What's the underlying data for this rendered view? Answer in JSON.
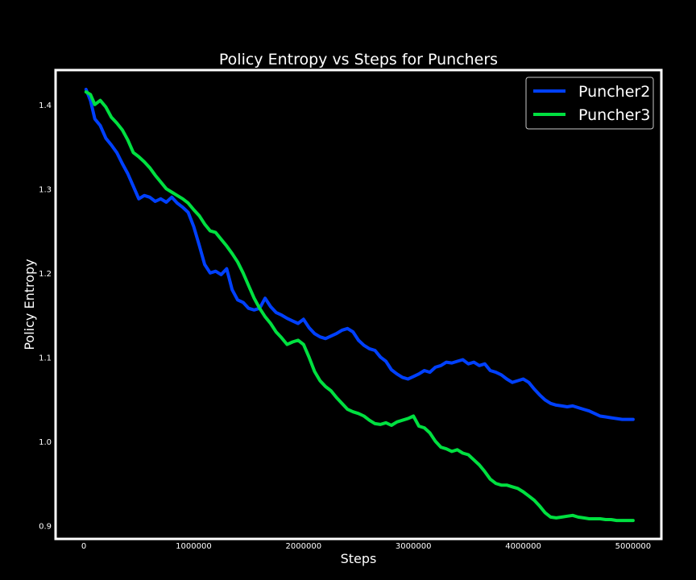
{
  "chart_data": {
    "type": "line",
    "title": "Policy Entropy vs Steps for Punchers",
    "xlabel": "Steps",
    "ylabel": "Policy Entropy",
    "xlim": [
      -250000,
      5250000
    ],
    "ylim": [
      0.885,
      1.44
    ],
    "xticks": [
      0,
      1000000,
      2000000,
      3000000,
      4000000,
      5000000
    ],
    "xtick_labels": [
      "0",
      "1000000",
      "2000000",
      "3000000",
      "4000000",
      "5000000"
    ],
    "yticks": [
      0.9,
      1.0,
      1.1,
      1.2,
      1.3,
      1.4
    ],
    "ytick_labels": [
      "0.9",
      "1.0",
      "1.1",
      "1.2",
      "1.3",
      "1.4"
    ],
    "grid": false,
    "legend": "top-right",
    "series": [
      {
        "name": "Puncher2",
        "color": "#0040ff",
        "x": [
          20000,
          60000,
          100000,
          150000,
          200000,
          250000,
          300000,
          350000,
          400000,
          450000,
          500000,
          550000,
          600000,
          650000,
          700000,
          750000,
          800000,
          850000,
          900000,
          950000,
          1000000,
          1050000,
          1100000,
          1150000,
          1200000,
          1250000,
          1300000,
          1350000,
          1400000,
          1450000,
          1500000,
          1550000,
          1600000,
          1650000,
          1700000,
          1750000,
          1800000,
          1850000,
          1900000,
          1950000,
          2000000,
          2050000,
          2100000,
          2150000,
          2200000,
          2250000,
          2300000,
          2350000,
          2400000,
          2450000,
          2500000,
          2550000,
          2600000,
          2650000,
          2700000,
          2750000,
          2800000,
          2850000,
          2900000,
          2950000,
          3000000,
          3050000,
          3100000,
          3150000,
          3200000,
          3250000,
          3300000,
          3350000,
          3400000,
          3450000,
          3500000,
          3550000,
          3600000,
          3650000,
          3700000,
          3750000,
          3800000,
          3850000,
          3900000,
          3950000,
          4000000,
          4050000,
          4100000,
          4150000,
          4200000,
          4250000,
          4300000,
          4350000,
          4400000,
          4450000,
          4500000,
          4550000,
          4600000,
          4650000,
          4700000,
          4750000,
          4800000,
          4850000,
          4900000,
          4950000,
          5000000
        ],
        "values": [
          1.418,
          1.405,
          1.383,
          1.375,
          1.36,
          1.352,
          1.343,
          1.33,
          1.318,
          1.303,
          1.288,
          1.292,
          1.29,
          1.285,
          1.288,
          1.284,
          1.29,
          1.283,
          1.278,
          1.272,
          1.255,
          1.233,
          1.21,
          1.2,
          1.202,
          1.198,
          1.205,
          1.18,
          1.168,
          1.165,
          1.158,
          1.156,
          1.158,
          1.17,
          1.16,
          1.153,
          1.15,
          1.146,
          1.143,
          1.14,
          1.145,
          1.135,
          1.128,
          1.124,
          1.122,
          1.125,
          1.128,
          1.132,
          1.134,
          1.13,
          1.12,
          1.114,
          1.11,
          1.108,
          1.1,
          1.095,
          1.085,
          1.08,
          1.076,
          1.074,
          1.077,
          1.08,
          1.084,
          1.082,
          1.088,
          1.09,
          1.094,
          1.093,
          1.095,
          1.097,
          1.092,
          1.094,
          1.09,
          1.092,
          1.084,
          1.082,
          1.079,
          1.074,
          1.07,
          1.072,
          1.074,
          1.07,
          1.062,
          1.055,
          1.049,
          1.045,
          1.043,
          1.042,
          1.041,
          1.042,
          1.04,
          1.038,
          1.036,
          1.033,
          1.03,
          1.029,
          1.028,
          1.027,
          1.026,
          1.026,
          1.026
        ]
      },
      {
        "name": "Puncher3",
        "color": "#00e040",
        "x": [
          20000,
          60000,
          100000,
          150000,
          200000,
          250000,
          300000,
          350000,
          400000,
          450000,
          500000,
          550000,
          600000,
          650000,
          700000,
          750000,
          800000,
          850000,
          900000,
          950000,
          1000000,
          1050000,
          1100000,
          1150000,
          1200000,
          1250000,
          1300000,
          1350000,
          1400000,
          1450000,
          1500000,
          1550000,
          1600000,
          1650000,
          1700000,
          1750000,
          1800000,
          1850000,
          1900000,
          1950000,
          2000000,
          2050000,
          2100000,
          2150000,
          2200000,
          2250000,
          2300000,
          2350000,
          2400000,
          2450000,
          2500000,
          2550000,
          2600000,
          2650000,
          2700000,
          2750000,
          2800000,
          2850000,
          2900000,
          2950000,
          3000000,
          3050000,
          3100000,
          3150000,
          3200000,
          3250000,
          3300000,
          3350000,
          3400000,
          3450000,
          3500000,
          3550000,
          3600000,
          3650000,
          3700000,
          3750000,
          3800000,
          3850000,
          3900000,
          3950000,
          4000000,
          4050000,
          4100000,
          4150000,
          4200000,
          4250000,
          4300000,
          4350000,
          4400000,
          4450000,
          4500000,
          4550000,
          4600000,
          4650000,
          4700000,
          4750000,
          4800000,
          4850000,
          4900000,
          4950000,
          5000000
        ],
        "values": [
          1.415,
          1.412,
          1.4,
          1.405,
          1.397,
          1.385,
          1.378,
          1.37,
          1.358,
          1.343,
          1.338,
          1.332,
          1.325,
          1.316,
          1.308,
          1.3,
          1.296,
          1.292,
          1.288,
          1.283,
          1.275,
          1.268,
          1.258,
          1.25,
          1.248,
          1.24,
          1.232,
          1.223,
          1.213,
          1.2,
          1.185,
          1.17,
          1.158,
          1.148,
          1.14,
          1.13,
          1.123,
          1.115,
          1.118,
          1.12,
          1.115,
          1.1,
          1.083,
          1.072,
          1.065,
          1.06,
          1.052,
          1.045,
          1.038,
          1.035,
          1.033,
          1.03,
          1.025,
          1.021,
          1.02,
          1.022,
          1.019,
          1.023,
          1.025,
          1.027,
          1.03,
          1.018,
          1.016,
          1.01,
          1.0,
          0.993,
          0.991,
          0.988,
          0.99,
          0.986,
          0.984,
          0.978,
          0.972,
          0.964,
          0.955,
          0.95,
          0.948,
          0.948,
          0.946,
          0.944,
          0.94,
          0.935,
          0.93,
          0.923,
          0.915,
          0.91,
          0.909,
          0.91,
          0.911,
          0.912,
          0.91,
          0.909,
          0.908,
          0.908,
          0.908,
          0.907,
          0.907,
          0.906,
          0.906,
          0.906,
          0.906
        ]
      }
    ]
  }
}
